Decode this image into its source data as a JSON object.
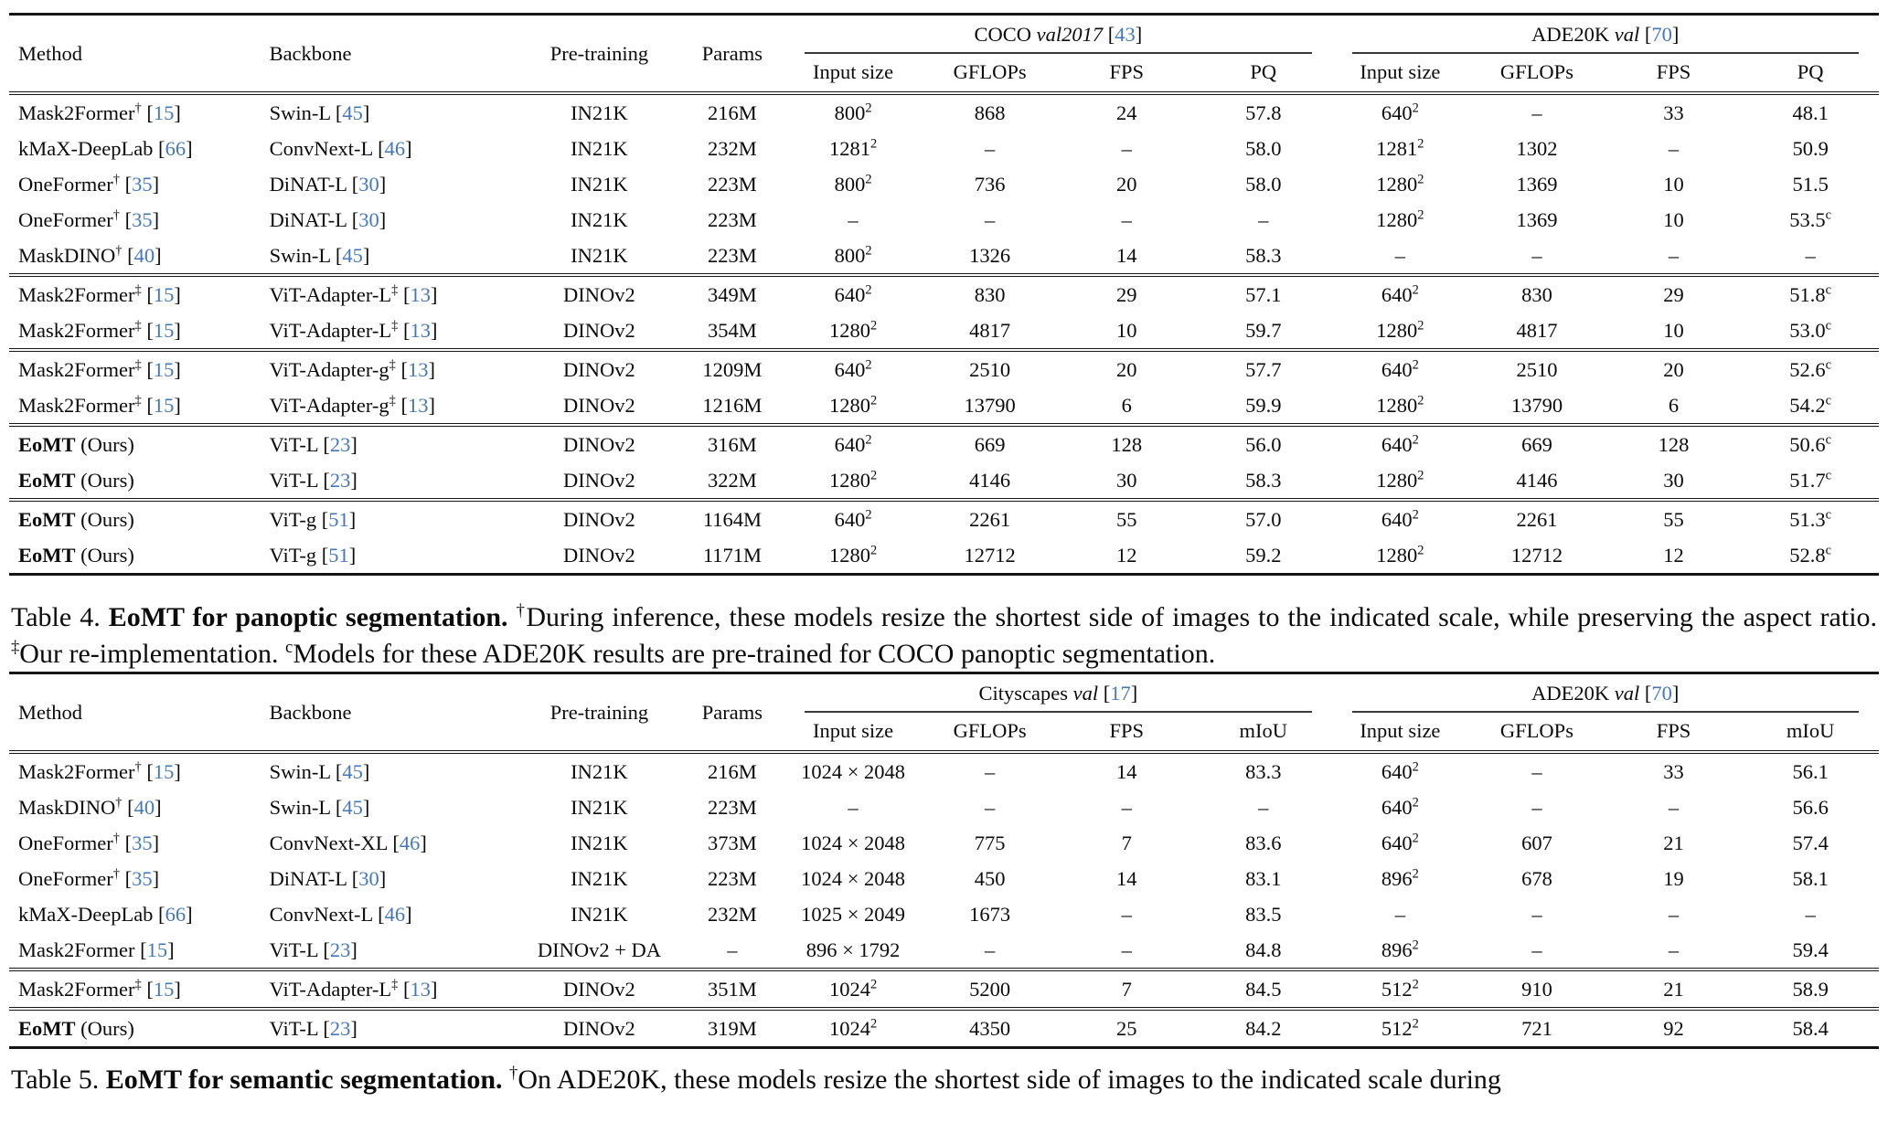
{
  "colors": {
    "citation_blue": "#4477bb",
    "text": "#0b0b0b",
    "rule": "#151515"
  },
  "tables": [
    {
      "name": "panoptic-results-table",
      "static_headers": [
        "Method",
        "Backbone",
        "Pre-training",
        "Params"
      ],
      "groups": [
        {
          "title": "COCO",
          "italic": "val2017",
          "cite": "43",
          "columns": [
            "Input size",
            "GFLOPs",
            "FPS",
            "PQ"
          ]
        },
        {
          "title": "ADE20K",
          "italic": "val",
          "cite": "70",
          "columns": [
            "Input size",
            "GFLOPs",
            "FPS",
            "PQ"
          ]
        }
      ],
      "blocks": [
        [
          {
            "method": {
              "text": "Mask2Former",
              "sup": "†",
              "cite": "15"
            },
            "backbone": {
              "text": "Swin-L",
              "cite": "45"
            },
            "pretraining": "IN21K",
            "params": "216M",
            "cells": [
              "800^2",
              "868",
              "24",
              "57.8",
              "640^2",
              "–",
              "33",
              "48.1"
            ]
          },
          {
            "method": {
              "text": "kMaX-DeepLab",
              "cite": "66"
            },
            "backbone": {
              "text": "ConvNext-L",
              "cite": "46"
            },
            "pretraining": "IN21K",
            "params": "232M",
            "cells": [
              "1281^2",
              "–",
              "–",
              "58.0",
              "1281^2",
              "1302",
              "–",
              "50.9"
            ]
          },
          {
            "method": {
              "text": "OneFormer",
              "sup": "†",
              "cite": "35"
            },
            "backbone": {
              "text": "DiNAT-L",
              "cite": "30"
            },
            "pretraining": "IN21K",
            "params": "223M",
            "cells": [
              "800^2",
              "736",
              "20",
              "58.0",
              "1280^2",
              "1369",
              "10",
              "51.5"
            ]
          },
          {
            "method": {
              "text": "OneFormer",
              "sup": "†",
              "cite": "35"
            },
            "backbone": {
              "text": "DiNAT-L",
              "cite": "30"
            },
            "pretraining": "IN21K",
            "params": "223M",
            "cells": [
              "–",
              "–",
              "–",
              "–",
              "1280^2",
              "1369",
              "10",
              "53.5^c"
            ]
          },
          {
            "method": {
              "text": "MaskDINO",
              "sup": "†",
              "cite": "40"
            },
            "backbone": {
              "text": "Swin-L",
              "cite": "45"
            },
            "pretraining": "IN21K",
            "params": "223M",
            "cells": [
              "800^2",
              "1326",
              "14",
              "58.3",
              "–",
              "–",
              "–",
              "–"
            ]
          }
        ],
        [
          {
            "method": {
              "text": "Mask2Former",
              "sup": "‡",
              "cite": "15"
            },
            "backbone": {
              "text": "ViT-Adapter-L",
              "sup": "‡",
              "cite": "13"
            },
            "pretraining": "DINOv2",
            "params": "349M",
            "cells": [
              "640^2",
              "830",
              "29",
              "57.1",
              "640^2",
              "830",
              "29",
              "51.8^c"
            ]
          },
          {
            "method": {
              "text": "Mask2Former",
              "sup": "‡",
              "cite": "15"
            },
            "backbone": {
              "text": "ViT-Adapter-L",
              "sup": "‡",
              "cite": "13"
            },
            "pretraining": "DINOv2",
            "params": "354M",
            "cells": [
              "1280^2",
              "4817",
              "10",
              "59.7",
              "1280^2",
              "4817",
              "10",
              "53.0^c"
            ]
          }
        ],
        [
          {
            "method": {
              "text": "Mask2Former",
              "sup": "‡",
              "cite": "15"
            },
            "backbone": {
              "text": "ViT-Adapter-g",
              "sup": "‡",
              "cite": "13"
            },
            "pretraining": "DINOv2",
            "params": "1209M",
            "cells": [
              "640^2",
              "2510",
              "20",
              "57.7",
              "640^2",
              "2510",
              "20",
              "52.6^c"
            ]
          },
          {
            "method": {
              "text": "Mask2Former",
              "sup": "‡",
              "cite": "15"
            },
            "backbone": {
              "text": "ViT-Adapter-g",
              "sup": "‡",
              "cite": "13"
            },
            "pretraining": "DINOv2",
            "params": "1216M",
            "cells": [
              "1280^2",
              "13790",
              "6",
              "59.9",
              "1280^2",
              "13790",
              "6",
              "54.2^c"
            ]
          }
        ],
        [
          {
            "method": {
              "text": "EoMT",
              "bold": true,
              "rest": " (Ours)"
            },
            "backbone": {
              "text": "ViT-L",
              "cite": "23"
            },
            "pretraining": "DINOv2",
            "params": "316M",
            "cells": [
              "640^2",
              "669",
              "128",
              "56.0",
              "640^2",
              "669",
              "128",
              "50.6^c"
            ]
          },
          {
            "method": {
              "text": "EoMT",
              "bold": true,
              "rest": " (Ours)"
            },
            "backbone": {
              "text": "ViT-L",
              "cite": "23"
            },
            "pretraining": "DINOv2",
            "params": "322M",
            "cells": [
              "1280^2",
              "4146",
              "30",
              "58.3",
              "1280^2",
              "4146",
              "30",
              "51.7^c"
            ]
          }
        ],
        [
          {
            "method": {
              "text": "EoMT",
              "bold": true,
              "rest": " (Ours)"
            },
            "backbone": {
              "text": "ViT-g",
              "cite": "51"
            },
            "pretraining": "DINOv2",
            "params": "1164M",
            "cells": [
              "640^2",
              "2261",
              "55",
              "57.0",
              "640^2",
              "2261",
              "55",
              "51.3^c"
            ]
          },
          {
            "method": {
              "text": "EoMT",
              "bold": true,
              "rest": " (Ours)"
            },
            "backbone": {
              "text": "ViT-g",
              "cite": "51"
            },
            "pretraining": "DINOv2",
            "params": "1171M",
            "cells": [
              "1280^2",
              "12712",
              "12",
              "59.2",
              "1280^2",
              "12712",
              "12",
              "52.8^c"
            ]
          }
        ]
      ]
    },
    {
      "name": "semantic-results-table",
      "static_headers": [
        "Method",
        "Backbone",
        "Pre-training",
        "Params"
      ],
      "groups": [
        {
          "title": "Cityscapes",
          "italic": "val",
          "cite": "17",
          "columns": [
            "Input size",
            "GFLOPs",
            "FPS",
            "mIoU"
          ]
        },
        {
          "title": "ADE20K",
          "italic": "val",
          "cite": "70",
          "columns": [
            "Input size",
            "GFLOPs",
            "FPS",
            "mIoU"
          ]
        }
      ],
      "blocks": [
        [
          {
            "method": {
              "text": "Mask2Former",
              "sup": "†",
              "cite": "15"
            },
            "backbone": {
              "text": "Swin-L",
              "cite": "45"
            },
            "pretraining": "IN21K",
            "params": "216M",
            "cells": [
              "1024 × 2048",
              "–",
              "14",
              "83.3",
              "640^2",
              "–",
              "33",
              "56.1"
            ]
          },
          {
            "method": {
              "text": "MaskDINO",
              "sup": "†",
              "cite": "40"
            },
            "backbone": {
              "text": "Swin-L",
              "cite": "45"
            },
            "pretraining": "IN21K",
            "params": "223M",
            "cells": [
              "–",
              "–",
              "–",
              "–",
              "640^2",
              "–",
              "–",
              "56.6"
            ]
          },
          {
            "method": {
              "text": "OneFormer",
              "sup": "†",
              "cite": "35"
            },
            "backbone": {
              "text": "ConvNext-XL",
              "cite": "46"
            },
            "pretraining": "IN21K",
            "params": "373M",
            "cells": [
              "1024 × 2048",
              "775",
              "7",
              "83.6",
              "640^2",
              "607",
              "21",
              "57.4"
            ]
          },
          {
            "method": {
              "text": "OneFormer",
              "sup": "†",
              "cite": "35"
            },
            "backbone": {
              "text": "DiNAT-L",
              "cite": "30"
            },
            "pretraining": "IN21K",
            "params": "223M",
            "cells": [
              "1024 × 2048",
              "450",
              "14",
              "83.1",
              "896^2",
              "678",
              "19",
              "58.1"
            ]
          },
          {
            "method": {
              "text": "kMaX-DeepLab",
              "cite": "66"
            },
            "backbone": {
              "text": "ConvNext-L",
              "cite": "46"
            },
            "pretraining": "IN21K",
            "params": "232M",
            "cells": [
              "1025 × 2049",
              "1673",
              "–",
              "83.5",
              "–",
              "–",
              "–",
              "–"
            ]
          },
          {
            "method": {
              "text": "Mask2Former",
              "cite": "15"
            },
            "backbone": {
              "text": "ViT-L",
              "cite": "23"
            },
            "pretraining": "DINOv2 + DA",
            "params": "–",
            "cells": [
              "896 × 1792",
              "–",
              "–",
              "84.8",
              "896^2",
              "–",
              "–",
              "59.4"
            ]
          }
        ],
        [
          {
            "method": {
              "text": "Mask2Former",
              "sup": "‡",
              "cite": "15"
            },
            "backbone": {
              "text": "ViT-Adapter-L",
              "sup": "‡",
              "cite": "13"
            },
            "pretraining": "DINOv2",
            "params": "351M",
            "cells": [
              "1024^2",
              "5200",
              "7",
              "84.5",
              "512^2",
              "910",
              "21",
              "58.9"
            ]
          }
        ],
        [
          {
            "method": {
              "text": "EoMT",
              "bold": true,
              "rest": " (Ours)"
            },
            "backbone": {
              "text": "ViT-L",
              "cite": "23"
            },
            "pretraining": "DINOv2",
            "params": "319M",
            "cells": [
              "1024^2",
              "4350",
              "25",
              "84.2",
              "512^2",
              "721",
              "92",
              "58.4"
            ]
          }
        ]
      ]
    }
  ],
  "captions": [
    {
      "name": "table-4-caption",
      "segments": [
        {
          "text": "Table 4. "
        },
        {
          "text": "EoMT for panoptic segmentation.",
          "bold": true
        },
        {
          "text": " "
        },
        {
          "sup": "†"
        },
        {
          "text": "During inference, these models resize the shortest side of images to the indicated scale, while preserving the aspect ratio. "
        },
        {
          "sup": "‡"
        },
        {
          "text": "Our re-implementation. "
        },
        {
          "sup": "c"
        },
        {
          "text": "Models for these ADE20K results are pre-trained for COCO panoptic segmentation."
        }
      ]
    },
    {
      "name": "table-5-caption",
      "segments": [
        {
          "text": "Table 5. "
        },
        {
          "text": "EoMT for semantic segmentation.",
          "bold": true
        },
        {
          "text": " "
        },
        {
          "sup": "†"
        },
        {
          "text": "On ADE20K, these models resize the shortest side of images to the indicated scale during"
        }
      ]
    }
  ]
}
